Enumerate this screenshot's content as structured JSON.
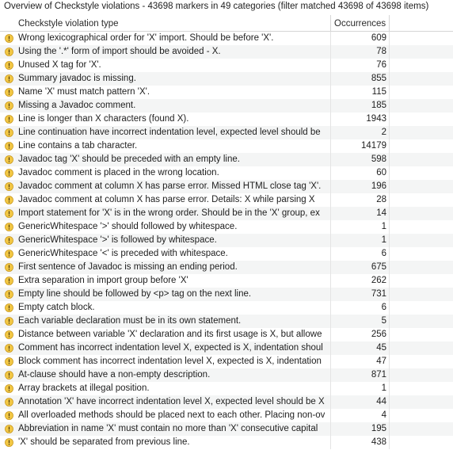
{
  "summary": "Overview of Checkstyle violations - 43698 markers in 49 categories (filter matched 43698 of 43698 items)",
  "columns": {
    "type": "Checkstyle violation type",
    "occurrences": "Occurrences"
  },
  "icon": "warning-icon",
  "rows": [
    {
      "label": "Wrong lexicographical order for 'X' import. Should be before 'X'.",
      "count": "609"
    },
    {
      "label": "Using the '.*' form of import should be avoided - X.",
      "count": "78"
    },
    {
      "label": "Unused X tag for 'X'.",
      "count": "76"
    },
    {
      "label": "Summary javadoc is missing.",
      "count": "855"
    },
    {
      "label": "Name 'X' must match pattern 'X'.",
      "count": "115"
    },
    {
      "label": "Missing a Javadoc comment.",
      "count": "185"
    },
    {
      "label": "Line is longer than X characters (found X).",
      "count": "1943"
    },
    {
      "label": "Line continuation have incorrect indentation level, expected level should be",
      "count": "2"
    },
    {
      "label": "Line contains a tab character.",
      "count": "14179"
    },
    {
      "label": "Javadoc tag 'X' should be preceded with an empty line.",
      "count": "598"
    },
    {
      "label": "Javadoc comment is placed in the wrong location.",
      "count": "60"
    },
    {
      "label": "Javadoc comment at column X has parse error. Missed HTML close tag 'X'.",
      "count": "196"
    },
    {
      "label": "Javadoc comment at column X has parse error. Details: X while parsing X",
      "count": "28"
    },
    {
      "label": "Import statement for 'X' is in the wrong order. Should be in the 'X' group, ex",
      "count": "14"
    },
    {
      "label": "GenericWhitespace '>' should followed by whitespace.",
      "count": "1"
    },
    {
      "label": "GenericWhitespace '>' is followed by whitespace.",
      "count": "1"
    },
    {
      "label": "GenericWhitespace '<' is preceded with whitespace.",
      "count": "6"
    },
    {
      "label": "First sentence of Javadoc is missing an ending period.",
      "count": "675"
    },
    {
      "label": "Extra separation in import group before 'X'",
      "count": "262"
    },
    {
      "label": "Empty line should be followed by <p> tag on the next line.",
      "count": "731"
    },
    {
      "label": "Empty catch block.",
      "count": "6"
    },
    {
      "label": "Each variable declaration must be in its own statement.",
      "count": "5"
    },
    {
      "label": "Distance between variable 'X' declaration and its first usage is X, but allowe",
      "count": "256"
    },
    {
      "label": "Comment has incorrect indentation level X, expected is X, indentation shoul",
      "count": "45"
    },
    {
      "label": "Block comment has incorrect indentation level X, expected is X, indentation",
      "count": "47"
    },
    {
      "label": "At-clause should have a non-empty description.",
      "count": "871"
    },
    {
      "label": "Array brackets at illegal position.",
      "count": "1"
    },
    {
      "label": "Annotation 'X' have incorrect indentation level X, expected level should be X",
      "count": "44"
    },
    {
      "label": "All overloaded methods should be placed next to each other. Placing non-ov",
      "count": "4"
    },
    {
      "label": "Abbreviation in name 'X' must contain no more than 'X' consecutive capital",
      "count": "195"
    },
    {
      "label": "'X' should be separated from previous line.",
      "count": "438"
    }
  ]
}
